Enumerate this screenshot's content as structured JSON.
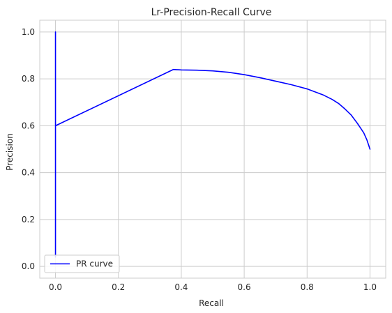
{
  "chart_data": {
    "type": "line",
    "title": "Lr-Precision-Recall Curve",
    "xlabel": "Recall",
    "ylabel": "Precision",
    "xlim": [
      -0.05,
      1.05
    ],
    "ylim": [
      -0.05,
      1.05
    ],
    "xticks": [
      0.0,
      0.2,
      0.4,
      0.6,
      0.8,
      1.0
    ],
    "xtick_labels": [
      "0.0",
      "0.2",
      "0.4",
      "0.6",
      "0.8",
      "1.0"
    ],
    "yticks": [
      0.0,
      0.2,
      0.4,
      0.6,
      0.8,
      1.0
    ],
    "ytick_labels": [
      "0.0",
      "0.2",
      "0.4",
      "0.6",
      "0.8",
      "1.0"
    ],
    "grid": true,
    "legend_position": "lower-left",
    "series": [
      {
        "name": "PR curve",
        "color": "#0000ff",
        "x": [
          0.0,
          0.0,
          0.0,
          0.0,
          0.375,
          0.4,
          0.45,
          0.5,
          0.55,
          0.6,
          0.65,
          0.7,
          0.75,
          0.8,
          0.85,
          0.88,
          0.9,
          0.92,
          0.94,
          0.96,
          0.97,
          0.98,
          0.99,
          1.0
        ],
        "y": [
          1.0,
          0.04,
          0.5,
          0.6,
          0.84,
          0.838,
          0.837,
          0.834,
          0.828,
          0.818,
          0.805,
          0.79,
          0.775,
          0.757,
          0.732,
          0.712,
          0.695,
          0.672,
          0.646,
          0.61,
          0.59,
          0.57,
          0.54,
          0.5
        ]
      }
    ]
  }
}
